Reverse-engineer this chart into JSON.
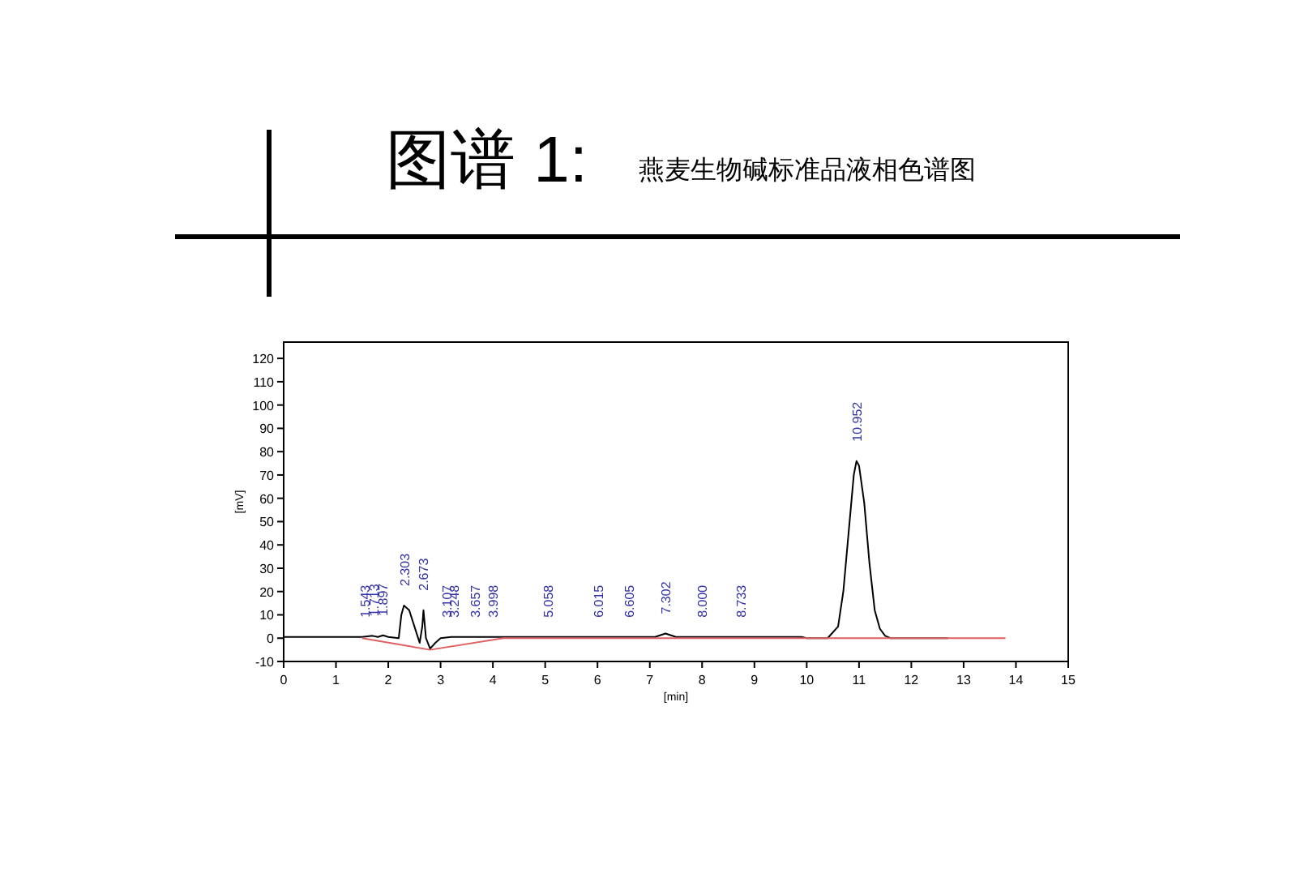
{
  "chart_data": {
    "type": "line",
    "title": "图谱 1:",
    "subtitle": "燕麦生物碱标准品液相色谱图",
    "xlabel": "[min]",
    "ylabel": "[mV]",
    "xlim": [
      0,
      15
    ],
    "ylim": [
      -10,
      127
    ],
    "xticks": [
      0,
      1,
      2,
      3,
      4,
      5,
      6,
      7,
      8,
      9,
      10,
      11,
      12,
      13,
      14,
      15
    ],
    "yticks": [
      -10,
      0,
      10,
      20,
      30,
      40,
      50,
      60,
      70,
      80,
      90,
      100,
      110,
      120
    ],
    "grid": false,
    "marker": "none",
    "series": [
      {
        "color": "#000000",
        "x": [
          0,
          1.5,
          1.7,
          1.8,
          1.9,
          2.0,
          2.2,
          2.25,
          2.3,
          2.4,
          2.5,
          2.6,
          2.65,
          2.673,
          2.72,
          2.8,
          2.9,
          3.0,
          3.2,
          4,
          7.1,
          7.3,
          7.5,
          9.9,
          10,
          10.4,
          10.6,
          10.7,
          10.8,
          10.9,
          10.952,
          11.0,
          11.1,
          11.2,
          11.3,
          11.4,
          11.5,
          11.6,
          12.7
        ],
        "values": [
          0.5,
          0.5,
          1,
          0.5,
          1.2,
          0.5,
          0,
          10,
          14,
          12,
          5,
          -2,
          5,
          12,
          0,
          -4.5,
          -2,
          0,
          0.5,
          0.5,
          0.5,
          2,
          0.5,
          0.5,
          0,
          0,
          5,
          20,
          45,
          70,
          76,
          74,
          58,
          32,
          12,
          4,
          1,
          0,
          0
        ]
      },
      {
        "color": "#e06060",
        "x": [
          1.5,
          2.8,
          4.2,
          13.8
        ],
        "values": [
          0,
          -5,
          0,
          0
        ]
      }
    ],
    "annotations": [
      {
        "text": "1.543",
        "x": 1.543,
        "y": 0.5
      },
      {
        "text": "1.713",
        "x": 1.713,
        "y": 1
      },
      {
        "text": "1.897",
        "x": 1.897,
        "y": 1.2
      },
      {
        "text": "2.303",
        "x": 2.303,
        "y": 14
      },
      {
        "text": "2.673",
        "x": 2.673,
        "y": 12
      },
      {
        "text": "3.107",
        "x": 3.107,
        "y": 0.5
      },
      {
        "text": "3.248",
        "x": 3.248,
        "y": 0.5
      },
      {
        "text": "3.657",
        "x": 3.657,
        "y": 0.5
      },
      {
        "text": "3.998",
        "x": 3.998,
        "y": 0.5
      },
      {
        "text": "5.058",
        "x": 5.058,
        "y": 0.5
      },
      {
        "text": "6.015",
        "x": 6.015,
        "y": 0.5
      },
      {
        "text": "6.605",
        "x": 6.605,
        "y": 0.5
      },
      {
        "text": "7.302",
        "x": 7.302,
        "y": 2
      },
      {
        "text": "8.000",
        "x": 8.0,
        "y": 0.5
      },
      {
        "text": "8.733",
        "x": 8.733,
        "y": 0.5
      },
      {
        "text": "10.952",
        "x": 10.952,
        "y": 76
      }
    ]
  }
}
